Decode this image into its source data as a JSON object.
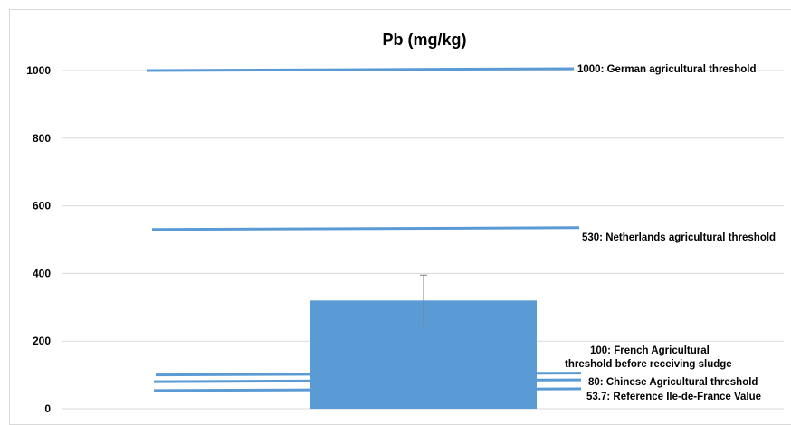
{
  "chart_data": {
    "type": "bar",
    "title": "Pb (mg/kg)",
    "xlabel": "",
    "ylabel": "",
    "ylim": [
      0,
      1000
    ],
    "yticks": [
      0,
      200,
      400,
      600,
      800,
      1000
    ],
    "grid": true,
    "categories": [
      ""
    ],
    "values": [
      320
    ],
    "error_bar": {
      "low": 245,
      "high": 395
    },
    "bar_color": "#5b9bd5",
    "line_color": "#5b9bd5",
    "thresholds": [
      {
        "value": 1000,
        "label": "1000: German agricultural threshold"
      },
      {
        "value": 530,
        "label": "530: Netherlands agricultural threshold"
      },
      {
        "value": 100,
        "label_lines": [
          "100: French Agricultural",
          "threshold before receiving sludge"
        ]
      },
      {
        "value": 80,
        "label": "80: Chinese Agricultural threshold"
      },
      {
        "value": 53.7,
        "label": "53.7: Reference Ile-de-France Value"
      }
    ]
  }
}
